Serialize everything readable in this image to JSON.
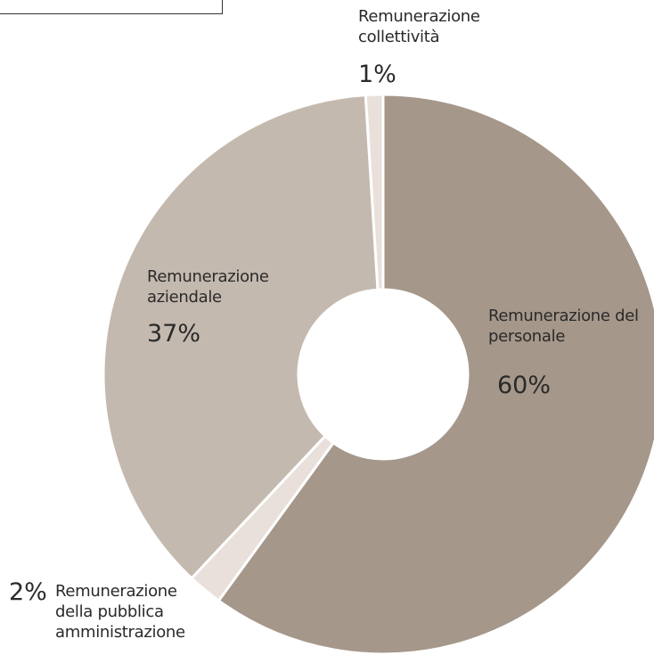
{
  "chart_data": {
    "type": "donut",
    "categories": [
      "Remunerazione del personale",
      "Remunerazione della pubblica amministrazione",
      "Remunerazione aziendale",
      "Remunerazione collettività"
    ],
    "values": [
      60,
      2,
      37,
      1
    ],
    "value_labels": [
      "60%",
      "2%",
      "37%",
      "1%"
    ],
    "colors": [
      "#a5978a",
      "#e9e0db",
      "#c4b9af",
      "#e9e0db"
    ]
  }
}
